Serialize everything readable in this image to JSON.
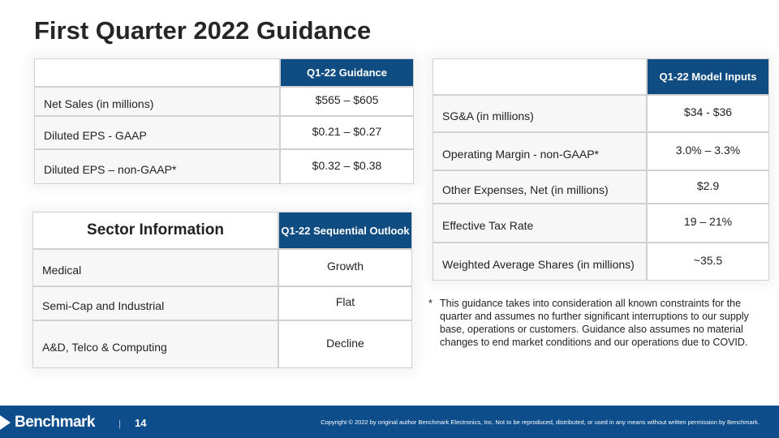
{
  "title": "First Quarter 2022 Guidance",
  "guidance_table": {
    "header": "Q1-22 Guidance",
    "rows": [
      [
        "Net Sales (in millions)",
        "$565 – $605"
      ],
      [
        "Diluted EPS - GAAP",
        "$0.21 – $0.27"
      ],
      [
        "Diluted EPS – non-GAAP*",
        "$0.32 – $0.38"
      ]
    ]
  },
  "model_table": {
    "header": "Q1-22 Model Inputs",
    "rows": [
      [
        "SG&A (in millions)",
        "$34 - $36"
      ],
      [
        "Operating Margin -  non-GAAP*",
        "3.0% – 3.3%"
      ],
      [
        "Other Expenses, Net (in millions)",
        "$2.9"
      ],
      [
        "Effective Tax Rate",
        "19 – 21%"
      ],
      [
        "Weighted Average Shares (in millions)",
        "~35.5"
      ]
    ]
  },
  "sector_table": {
    "header": [
      "Sector Information",
      "Q1-22 Sequential Outlook"
    ],
    "rows": [
      [
        "Medical",
        "Growth"
      ],
      [
        "Semi-Cap and Industrial",
        "Flat"
      ],
      [
        "A&D, Telco & Computing",
        "Decline"
      ]
    ]
  },
  "footnote": {
    "marker": "*",
    "text": "This guidance takes into consideration all known constraints for the quarter and assumes no further significant interruptions to our supply base, operations or customers. Guidance also assumes no material changes to end market conditions and our operations due to COVID."
  },
  "footer": {
    "logo": "Benchmark",
    "separator": "|",
    "page": "14",
    "copyright": "Copyright © 2022 by original author Benchmark Electronics, Inc. Not to be reproduced, distributed, or used in any means without written permission by Benchmark."
  }
}
